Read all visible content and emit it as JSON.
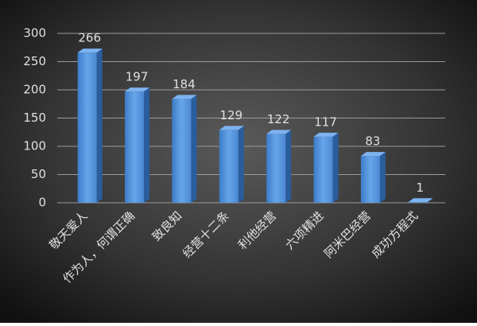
{
  "chart_data": {
    "type": "bar3d",
    "categories": [
      "敬天爱人",
      "作为人，何谓正确",
      "致良知",
      "经营十二条",
      "利他经营",
      "六项精进",
      "阿米巴经营",
      "成功方程式"
    ],
    "values": [
      266,
      197,
      184,
      129,
      122,
      117,
      83,
      1
    ],
    "color": "#4f8fd6",
    "ylim": [
      0,
      300
    ],
    "yticks": [
      0,
      50,
      100,
      150,
      200,
      250,
      300
    ],
    "grid": true
  }
}
